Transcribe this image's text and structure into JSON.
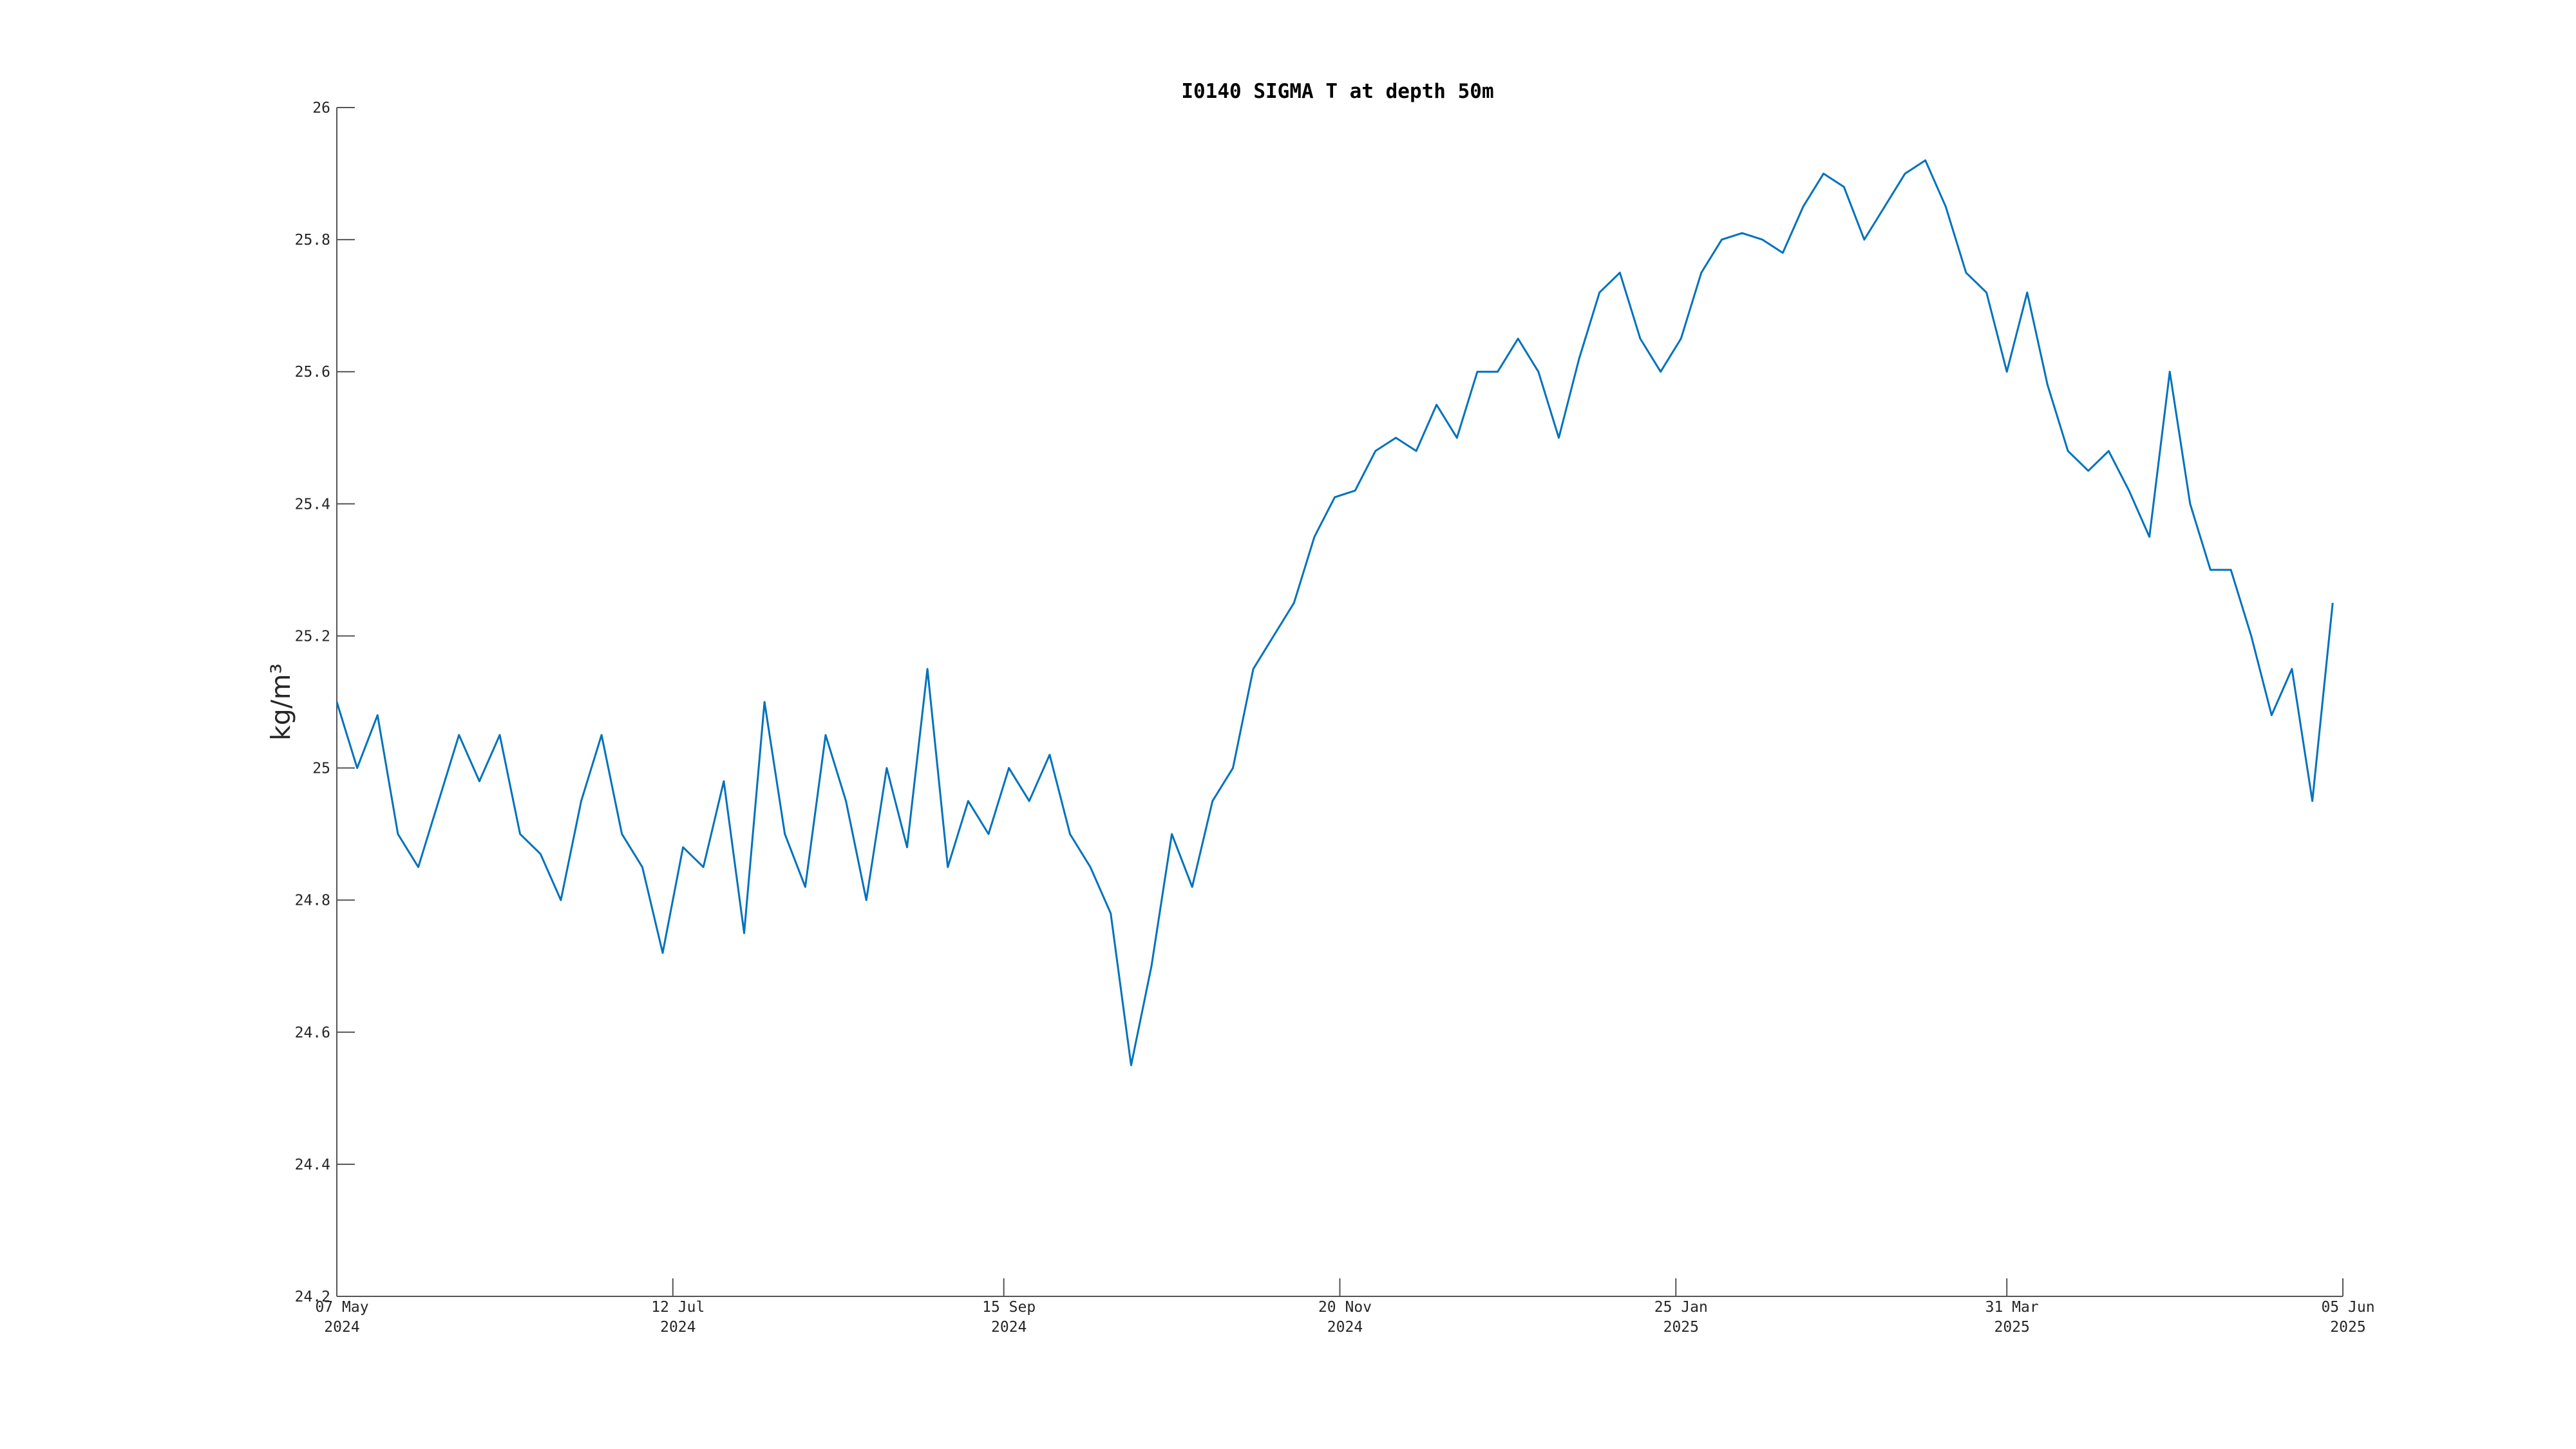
{
  "chart_data": {
    "type": "line",
    "title": "I0140 SIGMA T at depth 50m",
    "ylabel": "kg/m³",
    "x": [
      "2024-05-07",
      "2024-05-11",
      "2024-05-15",
      "2024-05-19",
      "2024-05-23",
      "2024-05-27",
      "2024-05-31",
      "2024-06-04",
      "2024-06-08",
      "2024-06-12",
      "2024-06-16",
      "2024-06-20",
      "2024-06-24",
      "2024-06-28",
      "2024-07-02",
      "2024-07-06",
      "2024-07-10",
      "2024-07-14",
      "2024-07-18",
      "2024-07-22",
      "2024-07-26",
      "2024-07-30",
      "2024-08-03",
      "2024-08-07",
      "2024-08-11",
      "2024-08-15",
      "2024-08-19",
      "2024-08-23",
      "2024-08-27",
      "2024-08-31",
      "2024-09-04",
      "2024-09-08",
      "2024-09-12",
      "2024-09-16",
      "2024-09-20",
      "2024-09-24",
      "2024-09-28",
      "2024-10-02",
      "2024-10-06",
      "2024-10-10",
      "2024-10-14",
      "2024-10-18",
      "2024-10-22",
      "2024-10-26",
      "2024-10-30",
      "2024-11-03",
      "2024-11-07",
      "2024-11-11",
      "2024-11-15",
      "2024-11-19",
      "2024-11-23",
      "2024-11-27",
      "2024-12-01",
      "2024-12-05",
      "2024-12-09",
      "2024-12-13",
      "2024-12-17",
      "2024-12-21",
      "2024-12-25",
      "2024-12-29",
      "2025-01-02",
      "2025-01-06",
      "2025-01-10",
      "2025-01-14",
      "2025-01-18",
      "2025-01-22",
      "2025-01-26",
      "2025-01-30",
      "2025-02-03",
      "2025-02-07",
      "2025-02-11",
      "2025-02-15",
      "2025-02-19",
      "2025-02-23",
      "2025-02-27",
      "2025-03-03",
      "2025-03-07",
      "2025-03-11",
      "2025-03-15",
      "2025-03-19",
      "2025-03-23",
      "2025-03-27",
      "2025-03-31",
      "2025-04-04",
      "2025-04-08",
      "2025-04-12",
      "2025-04-16",
      "2025-04-20",
      "2025-04-24",
      "2025-04-28",
      "2025-05-02",
      "2025-05-06",
      "2025-05-10",
      "2025-05-14",
      "2025-05-18",
      "2025-05-22",
      "2025-05-26",
      "2025-05-30",
      "2025-06-03"
    ],
    "series": [
      {
        "color": "#0072bd",
        "values": [
          25.1,
          25.0,
          25.08,
          24.9,
          24.85,
          24.95,
          25.05,
          24.98,
          25.05,
          24.9,
          24.87,
          24.8,
          24.95,
          25.05,
          24.9,
          24.85,
          24.72,
          24.88,
          24.85,
          24.98,
          24.75,
          25.1,
          24.9,
          24.82,
          25.05,
          24.95,
          24.8,
          25.0,
          24.88,
          25.15,
          24.85,
          24.95,
          24.9,
          25.0,
          24.95,
          25.02,
          24.9,
          24.85,
          24.78,
          24.55,
          24.7,
          24.9,
          24.82,
          24.95,
          25.0,
          25.15,
          25.2,
          25.25,
          25.35,
          25.41,
          25.42,
          25.48,
          25.5,
          25.48,
          25.55,
          25.5,
          25.6,
          25.6,
          25.65,
          25.6,
          25.5,
          25.62,
          25.72,
          25.75,
          25.65,
          25.6,
          25.65,
          25.75,
          25.8,
          25.81,
          25.8,
          25.78,
          25.85,
          25.9,
          25.88,
          25.8,
          25.85,
          25.9,
          25.92,
          25.85,
          25.75,
          25.72,
          25.6,
          25.72,
          25.58,
          25.48,
          25.45,
          25.48,
          25.42,
          25.35,
          25.6,
          25.4,
          25.3,
          25.3,
          25.2,
          25.08,
          25.15,
          24.95,
          25.25
        ]
      }
    ],
    "xlim": [
      "2024-05-07",
      "2025-06-05"
    ],
    "xticks": [
      {
        "value": "2024-05-07",
        "label": [
          "07 May",
          "2024"
        ]
      },
      {
        "value": "2024-07-12",
        "label": [
          "12 Jul",
          "2024"
        ]
      },
      {
        "value": "2024-09-15",
        "label": [
          "15 Sep",
          "2024"
        ]
      },
      {
        "value": "2024-11-20",
        "label": [
          "20 Nov",
          "2024"
        ]
      },
      {
        "value": "2025-01-25",
        "label": [
          "25 Jan",
          "2025"
        ]
      },
      {
        "value": "2025-03-31",
        "label": [
          "31 Mar",
          "2025"
        ]
      },
      {
        "value": "2025-06-05",
        "label": [
          "05 Jun",
          "2025"
        ]
      }
    ],
    "ylim": [
      24.2,
      26
    ],
    "yticks": [
      24.2,
      24.4,
      24.6,
      24.8,
      25,
      25.2,
      25.4,
      25.6,
      25.8,
      26
    ],
    "grid": false
  }
}
